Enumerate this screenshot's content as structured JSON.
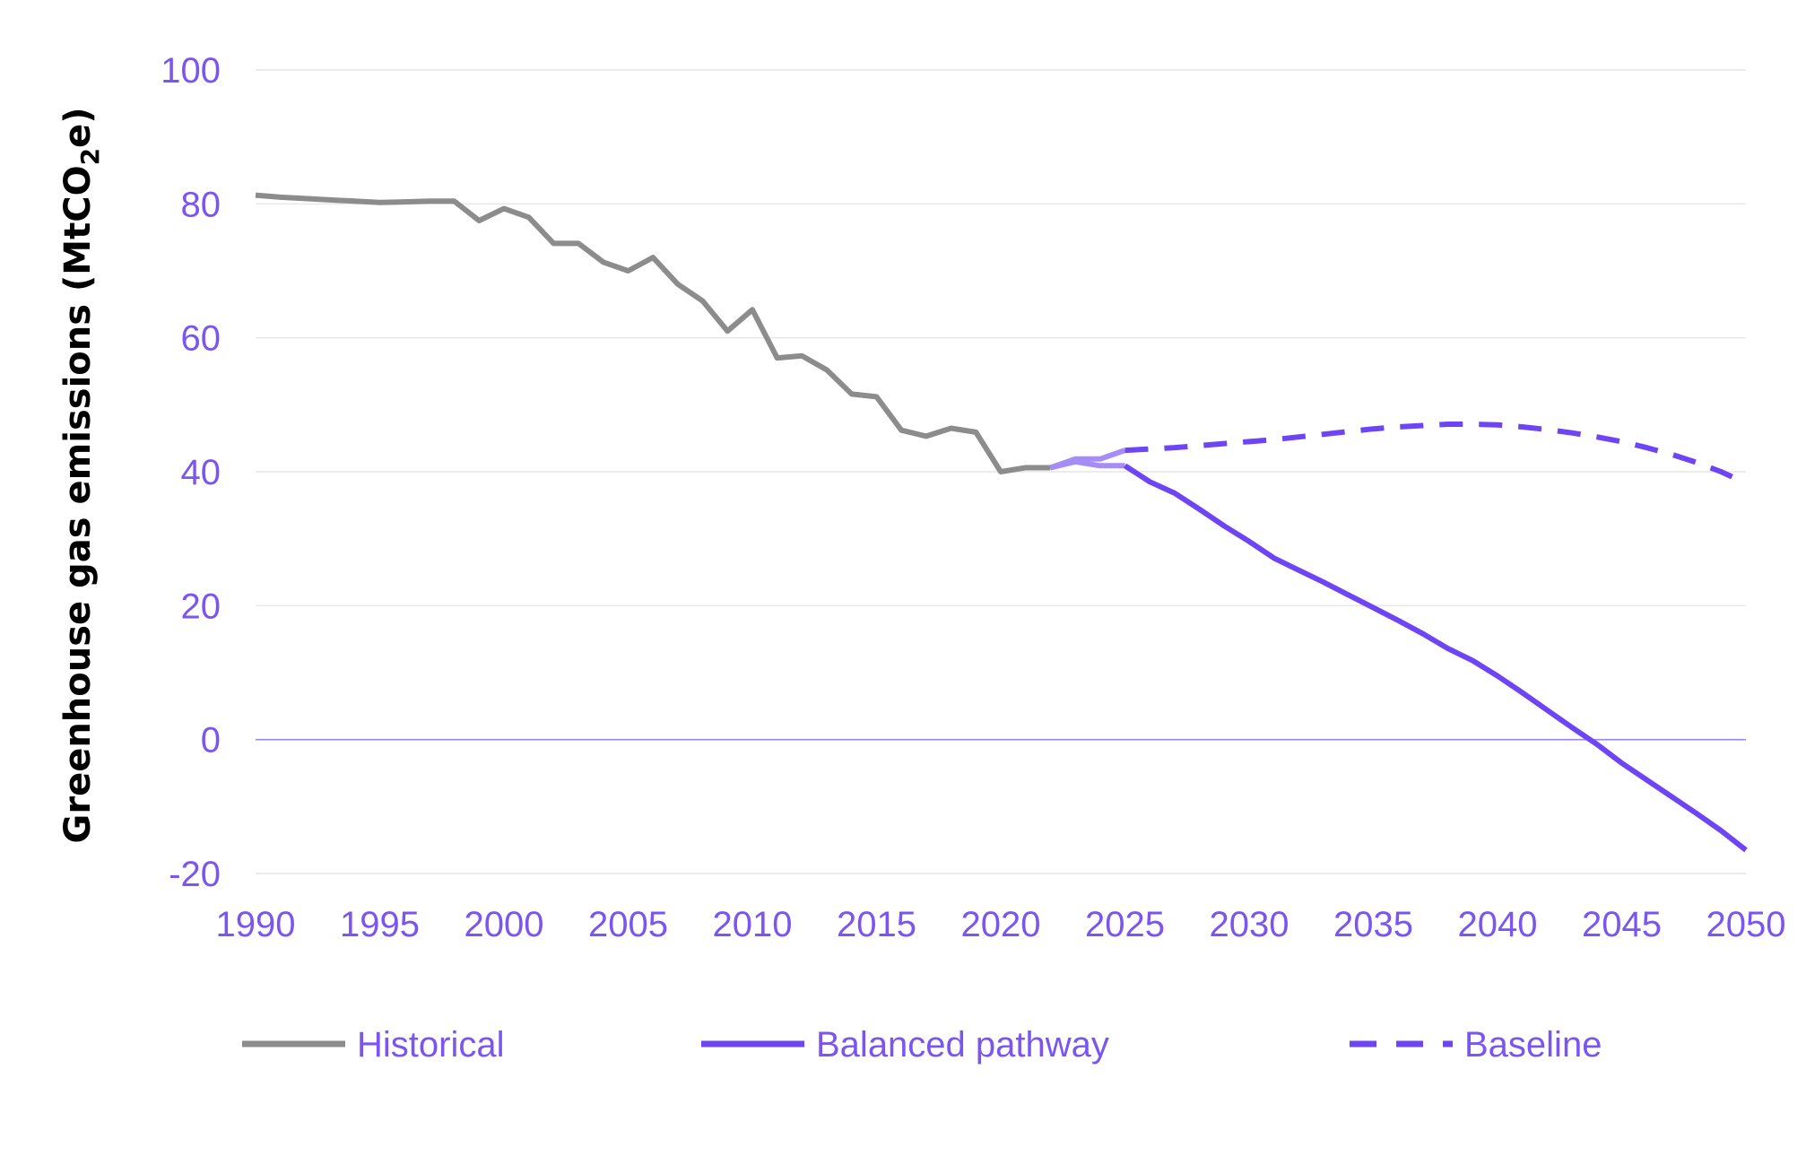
{
  "chart_data": {
    "type": "line",
    "title": "",
    "ylabel_main": "Greenhouse gas emissions (MtCO",
    "ylabel_sub": "2",
    "ylabel_tail": "e)",
    "xlim": [
      1990,
      2050
    ],
    "ylim": [
      -20,
      100
    ],
    "x_ticks": [
      1990,
      1995,
      2000,
      2005,
      2010,
      2015,
      2020,
      2025,
      2030,
      2035,
      2040,
      2045,
      2050
    ],
    "y_ticks": [
      -20,
      0,
      20,
      40,
      60,
      80,
      100
    ],
    "grid": true,
    "legend_position": "bottom",
    "colors": {
      "historical": "#8c8c8c",
      "balanced": "#6e45f5",
      "baseline": "#6e45f5",
      "bridge": "#a58cf7",
      "tick_text": "#7a55f0",
      "grid": "#e6e6e6",
      "zero_line": "#9b85f0"
    },
    "series": [
      {
        "name": "Historical",
        "style": "solid",
        "x": [
          1990,
          1991,
          1992,
          1993,
          1994,
          1995,
          1996,
          1997,
          1998,
          1999,
          2000,
          2001,
          2002,
          2003,
          2004,
          2005,
          2006,
          2007,
          2008,
          2009,
          2010,
          2011,
          2012,
          2013,
          2014,
          2015,
          2016,
          2017,
          2018,
          2019,
          2020,
          2021,
          2022
        ],
        "y": [
          81.3,
          81.0,
          80.8,
          80.6,
          80.4,
          80.2,
          80.3,
          80.4,
          80.4,
          77.5,
          79.3,
          78.0,
          74.1,
          74.1,
          71.3,
          70.0,
          72.0,
          68.0,
          65.5,
          61.0,
          64.2,
          57.0,
          57.3,
          55.2,
          51.6,
          51.2,
          46.2,
          45.3,
          46.5,
          45.9,
          40.0,
          40.6,
          40.6
        ]
      },
      {
        "name": "",
        "style": "bridge",
        "x": [
          2022,
          2023,
          2024,
          2025
        ],
        "y": [
          40.6,
          41.9,
          41.9,
          43.2
        ]
      },
      {
        "name": "",
        "style": "bridge",
        "x": [
          2022,
          2023,
          2024,
          2025
        ],
        "y": [
          40.6,
          41.5,
          40.9,
          40.9
        ]
      },
      {
        "name": "Balanced pathway",
        "style": "solid",
        "x": [
          2025,
          2026,
          2027,
          2028,
          2029,
          2030,
          2031,
          2032,
          2033,
          2034,
          2035,
          2036,
          2037,
          2038,
          2039,
          2040,
          2041,
          2042,
          2043,
          2044,
          2045,
          2046,
          2047,
          2048,
          2049,
          2050
        ],
        "y": [
          40.9,
          38.5,
          36.8,
          34.4,
          31.9,
          29.6,
          27.1,
          25.3,
          23.5,
          21.6,
          19.7,
          17.8,
          15.8,
          13.6,
          11.8,
          9.5,
          7.0,
          4.4,
          1.8,
          -0.7,
          -3.5,
          -6.0,
          -8.5,
          -11.0,
          -13.6,
          -16.5
        ]
      },
      {
        "name": "Baseline",
        "style": "dashed",
        "x": [
          2025,
          2026,
          2027,
          2028,
          2029,
          2030,
          2031,
          2032,
          2033,
          2034,
          2035,
          2036,
          2037,
          2038,
          2039,
          2040,
          2041,
          2042,
          2043,
          2044,
          2045,
          2046,
          2047,
          2048,
          2049,
          2050
        ],
        "y": [
          43.2,
          43.4,
          43.6,
          43.9,
          44.2,
          44.5,
          44.8,
          45.2,
          45.6,
          46.0,
          46.4,
          46.7,
          46.9,
          47.1,
          47.1,
          47.0,
          46.7,
          46.3,
          45.8,
          45.2,
          44.5,
          43.6,
          42.6,
          41.4,
          40.0,
          38.3
        ]
      }
    ],
    "legend": [
      {
        "label": "Historical",
        "style": "solid",
        "color": "#8c8c8c"
      },
      {
        "label": "Balanced pathway",
        "style": "solid",
        "color": "#6e45f5"
      },
      {
        "label": "Baseline",
        "style": "dashed",
        "color": "#6e45f5"
      }
    ]
  }
}
